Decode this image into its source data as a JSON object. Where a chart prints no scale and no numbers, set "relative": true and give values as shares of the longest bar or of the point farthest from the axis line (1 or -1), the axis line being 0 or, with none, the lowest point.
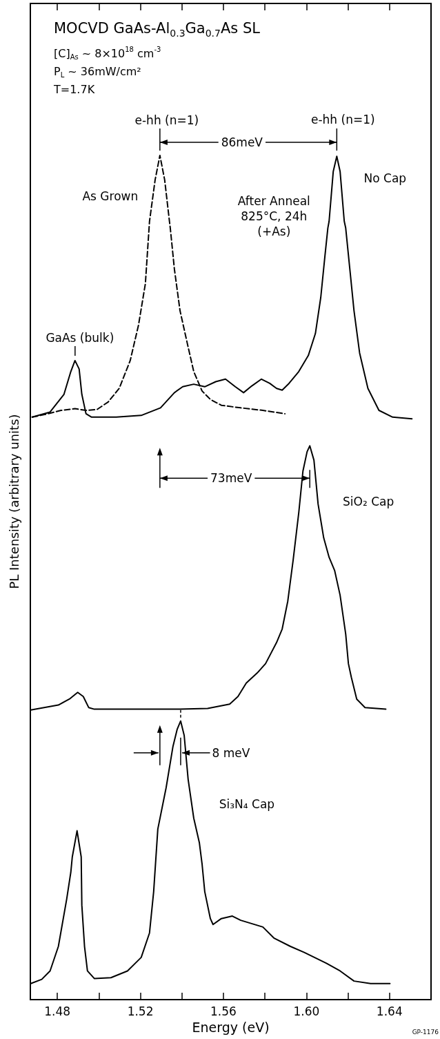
{
  "chart_data": {
    "type": "line",
    "relative": true,
    "marker": "none",
    "title": "MOCVD GaAs-Al$_{0.3}$Ga$_{0.7}$As SL",
    "xlabel": "Energy (eV)",
    "ylabel": "PL Intensity (arbitrary units)",
    "xlim": [
      1.467,
      1.66
    ],
    "xticks": [
      1.48,
      {
        "value": 1.5,
        "label": null
      },
      1.52,
      {
        "value": 1.54,
        "label": null
      },
      1.56,
      {
        "value": 1.58,
        "label": null
      },
      {
        "value": 1.6,
        "label": "1.60"
      },
      {
        "value": 1.62,
        "label": null
      },
      1.64
    ],
    "series": [
      {
        "color": "#000000",
        "line_style": "dashed",
        "x": [
          1.4679,
          1.4738,
          1.4818,
          1.4885,
          1.4938,
          1.4991,
          1.5045,
          1.5098,
          1.5151,
          1.5191,
          1.5224,
          1.5244,
          1.5271,
          1.5294,
          1.5317,
          1.534,
          1.5344,
          1.5364,
          1.5391,
          1.543,
          1.5457,
          1.5497,
          1.5537,
          1.559,
          1.5683,
          1.579,
          1.5896
        ],
        "values": [
          0.69,
          0.693,
          0.698,
          0.7,
          0.698,
          0.699,
          0.708,
          0.724,
          0.757,
          0.799,
          0.848,
          0.922,
          0.971,
          1.0,
          0.971,
          0.922,
          0.914,
          0.865,
          0.816,
          0.773,
          0.744,
          0.721,
          0.711,
          0.704,
          0.701,
          0.698,
          0.694
        ]
      },
      {
        "color": "#000000",
        "line_style": "solid",
        "x": [
          1.4679,
          1.4765,
          1.4832,
          1.4865,
          1.4885,
          1.4905,
          1.4918,
          1.4938,
          1.4965,
          1.5084,
          1.5204,
          1.5297,
          1.5364,
          1.5404,
          1.5457,
          1.551,
          1.5563,
          1.561,
          1.5657,
          1.5697,
          1.5737,
          1.5783,
          1.5823,
          1.5856,
          1.5883,
          1.5916,
          1.5963,
          1.6009,
          1.6043,
          1.6069,
          1.6089,
          1.6103,
          1.6109,
          1.6129,
          1.6146,
          1.6162,
          1.6182,
          1.6189,
          1.6209,
          1.6229,
          1.6256,
          1.6296,
          1.6349,
          1.6415,
          1.6508
        ],
        "values": [
          0.69,
          0.696,
          0.717,
          0.744,
          0.757,
          0.747,
          0.717,
          0.694,
          0.69,
          0.69,
          0.692,
          0.701,
          0.719,
          0.726,
          0.729,
          0.726,
          0.732,
          0.735,
          0.726,
          0.719,
          0.727,
          0.735,
          0.73,
          0.724,
          0.722,
          0.73,
          0.744,
          0.763,
          0.789,
          0.832,
          0.881,
          0.914,
          0.922,
          0.981,
          0.999,
          0.981,
          0.922,
          0.914,
          0.865,
          0.816,
          0.766,
          0.724,
          0.698,
          0.69,
          0.688
        ]
      },
      {
        "color": "#000000",
        "line_style": "solid",
        "x": [
          1.4672,
          1.4805,
          1.4858,
          1.4898,
          1.4925,
          1.4951,
          1.4978,
          1.5391,
          1.5524,
          1.563,
          1.567,
          1.571,
          1.5763,
          1.5803,
          1.5856,
          1.5883,
          1.591,
          1.5936,
          1.5963,
          1.5983,
          1.6003,
          1.6016,
          1.6036,
          1.6056,
          1.6083,
          1.6109,
          1.6136,
          1.6162,
          1.6189,
          1.6202,
          1.6216,
          1.6242,
          1.6282,
          1.6382
        ],
        "values": [
          0.343,
          0.349,
          0.356,
          0.364,
          0.359,
          0.346,
          0.344,
          0.344,
          0.345,
          0.35,
          0.359,
          0.375,
          0.387,
          0.398,
          0.423,
          0.439,
          0.472,
          0.521,
          0.577,
          0.626,
          0.649,
          0.656,
          0.639,
          0.587,
          0.547,
          0.524,
          0.508,
          0.479,
          0.433,
          0.398,
          0.382,
          0.356,
          0.346,
          0.344
        ]
      },
      {
        "color": "#000000",
        "line_style": "solid",
        "x": [
          1.4672,
          1.4725,
          1.4765,
          1.4805,
          1.4845,
          1.4865,
          1.4872,
          1.4895,
          1.4915,
          1.4918,
          1.4931,
          1.4945,
          1.4978,
          1.5058,
          1.5138,
          1.5204,
          1.5244,
          1.5264,
          1.5284,
          1.5324,
          1.5357,
          1.5377,
          1.5394,
          1.5411,
          1.543,
          1.5457,
          1.5484,
          1.5497,
          1.551,
          1.5537,
          1.555,
          1.559,
          1.5643,
          1.5683,
          1.579,
          1.5843,
          1.5923,
          1.5989,
          1.6096,
          1.6162,
          1.6229,
          1.6309,
          1.6402
        ],
        "values": [
          0.019,
          0.024,
          0.034,
          0.063,
          0.119,
          0.151,
          0.169,
          0.2,
          0.169,
          0.112,
          0.063,
          0.034,
          0.025,
          0.026,
          0.034,
          0.05,
          0.079,
          0.128,
          0.202,
          0.251,
          0.3,
          0.32,
          0.33,
          0.313,
          0.261,
          0.215,
          0.186,
          0.161,
          0.128,
          0.096,
          0.089,
          0.096,
          0.099,
          0.094,
          0.086,
          0.073,
          0.063,
          0.056,
          0.043,
          0.034,
          0.022,
          0.019,
          0.019
        ]
      }
    ],
    "annotations": [
      "[C]$_{As}$ ~ 8×10$^{18}$ cm$^{-3}$",
      "P$_{L}$ ~ 36mW/cm²",
      "T=1.7K",
      "e-hh (n=1)",
      "e-hh (n=1)",
      "86meV",
      "As Grown",
      "After Anneal\n825°C, 24h\n(+As)",
      "No Cap",
      "GaAs (bulk)",
      "73meV",
      "SiO₂ Cap",
      "8 meV",
      "Si₃N₄ Cap",
      "GP-1176"
    ]
  }
}
